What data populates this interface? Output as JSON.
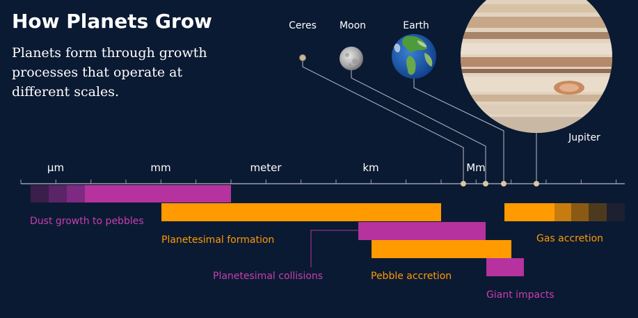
{
  "header": {
    "title": "How Planets Grow",
    "subtitle": "Planets form through growth processes that operate at different scales."
  },
  "bodies": [
    {
      "name": "Ceres"
    },
    {
      "name": "Moon"
    },
    {
      "name": "Earth"
    },
    {
      "name": "Jupiter"
    }
  ],
  "scale": {
    "ticks": [
      {
        "label": "µm",
        "exp": -6
      },
      {
        "label": "mm",
        "exp": -3
      },
      {
        "label": "meter",
        "exp": 0
      },
      {
        "label": "km",
        "exp": 3
      },
      {
        "label": "Mm",
        "exp": 6
      }
    ]
  },
  "processes": [
    {
      "label": "Dust growth to pebbles",
      "color": "#b5329f"
    },
    {
      "label": "Planetesimal formation",
      "color": "#ff9a00"
    },
    {
      "label": "Planetesimal collisions",
      "color": "#b5329f"
    },
    {
      "label": "Pebble accretion",
      "color": "#ff9a00"
    },
    {
      "label": "Giant impacts",
      "color": "#b5329f"
    },
    {
      "label": "Gas accretion",
      "color": "#ff9a00"
    }
  ],
  "colors": {
    "background": "#0b1a33",
    "axis": "#9aa0ad",
    "magenta": "#b5329f",
    "orange": "#ff9a00",
    "body_dot": "#d9c7a3"
  }
}
